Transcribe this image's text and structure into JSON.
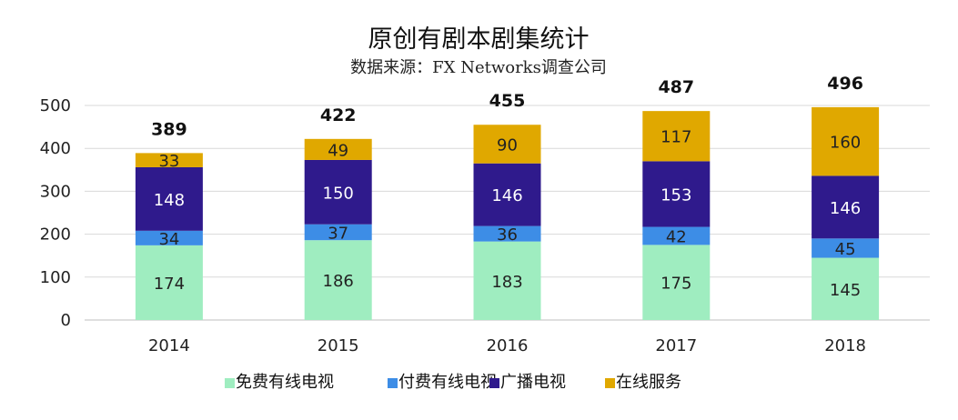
{
  "chart_data": {
    "type": "bar",
    "stacked": true,
    "title": "原创有剧本剧集统计",
    "subtitle": "数据来源：FX Networks调查公司",
    "categories": [
      "2014",
      "2015",
      "2016",
      "2017",
      "2018"
    ],
    "ylim": [
      0,
      500
    ],
    "yticks": [
      "0",
      "100",
      "200",
      "300",
      "400",
      "500"
    ],
    "grid": true,
    "legend_position": "bottom",
    "series": [
      {
        "name": "免费有线电视",
        "color": "#9fedc0",
        "values": [
          174,
          186,
          183,
          175,
          145
        ]
      },
      {
        "name": "付费有线电视",
        "color": "#3d8de6",
        "values": [
          34,
          37,
          36,
          42,
          45
        ]
      },
      {
        "name": "广播电视",
        "color": "#2f1a8c",
        "values": [
          148,
          150,
          146,
          153,
          146
        ]
      },
      {
        "name": "在线服务",
        "color": "#e0a800",
        "values": [
          33,
          49,
          90,
          117,
          160
        ]
      }
    ],
    "totals": [
      "389",
      "422",
      "455",
      "487",
      "496"
    ]
  }
}
